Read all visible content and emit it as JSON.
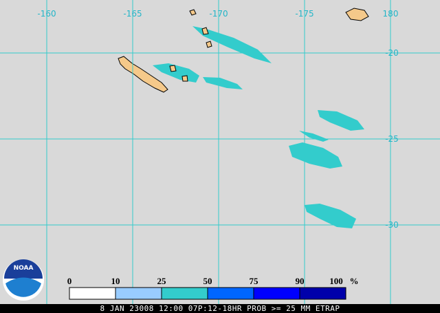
{
  "map": {
    "lon_labels": [
      "-160",
      "-165",
      "-170",
      "-175",
      "180"
    ],
    "lat_labels": [
      "-20",
      "-25",
      "-30"
    ]
  },
  "legend": {
    "labels": [
      "0",
      "10",
      "25",
      "50",
      "75",
      "90",
      "100"
    ],
    "unit": "%",
    "colors": [
      "#ffffff",
      "#99ccff",
      "#33cccc",
      "#0066ff",
      "#0000ff",
      "#0000aa"
    ]
  },
  "logo": "NOAA",
  "footer": "8 JAN 23008 12:00 07P:12-18HR PROB >= 25 MM ETRAP"
}
